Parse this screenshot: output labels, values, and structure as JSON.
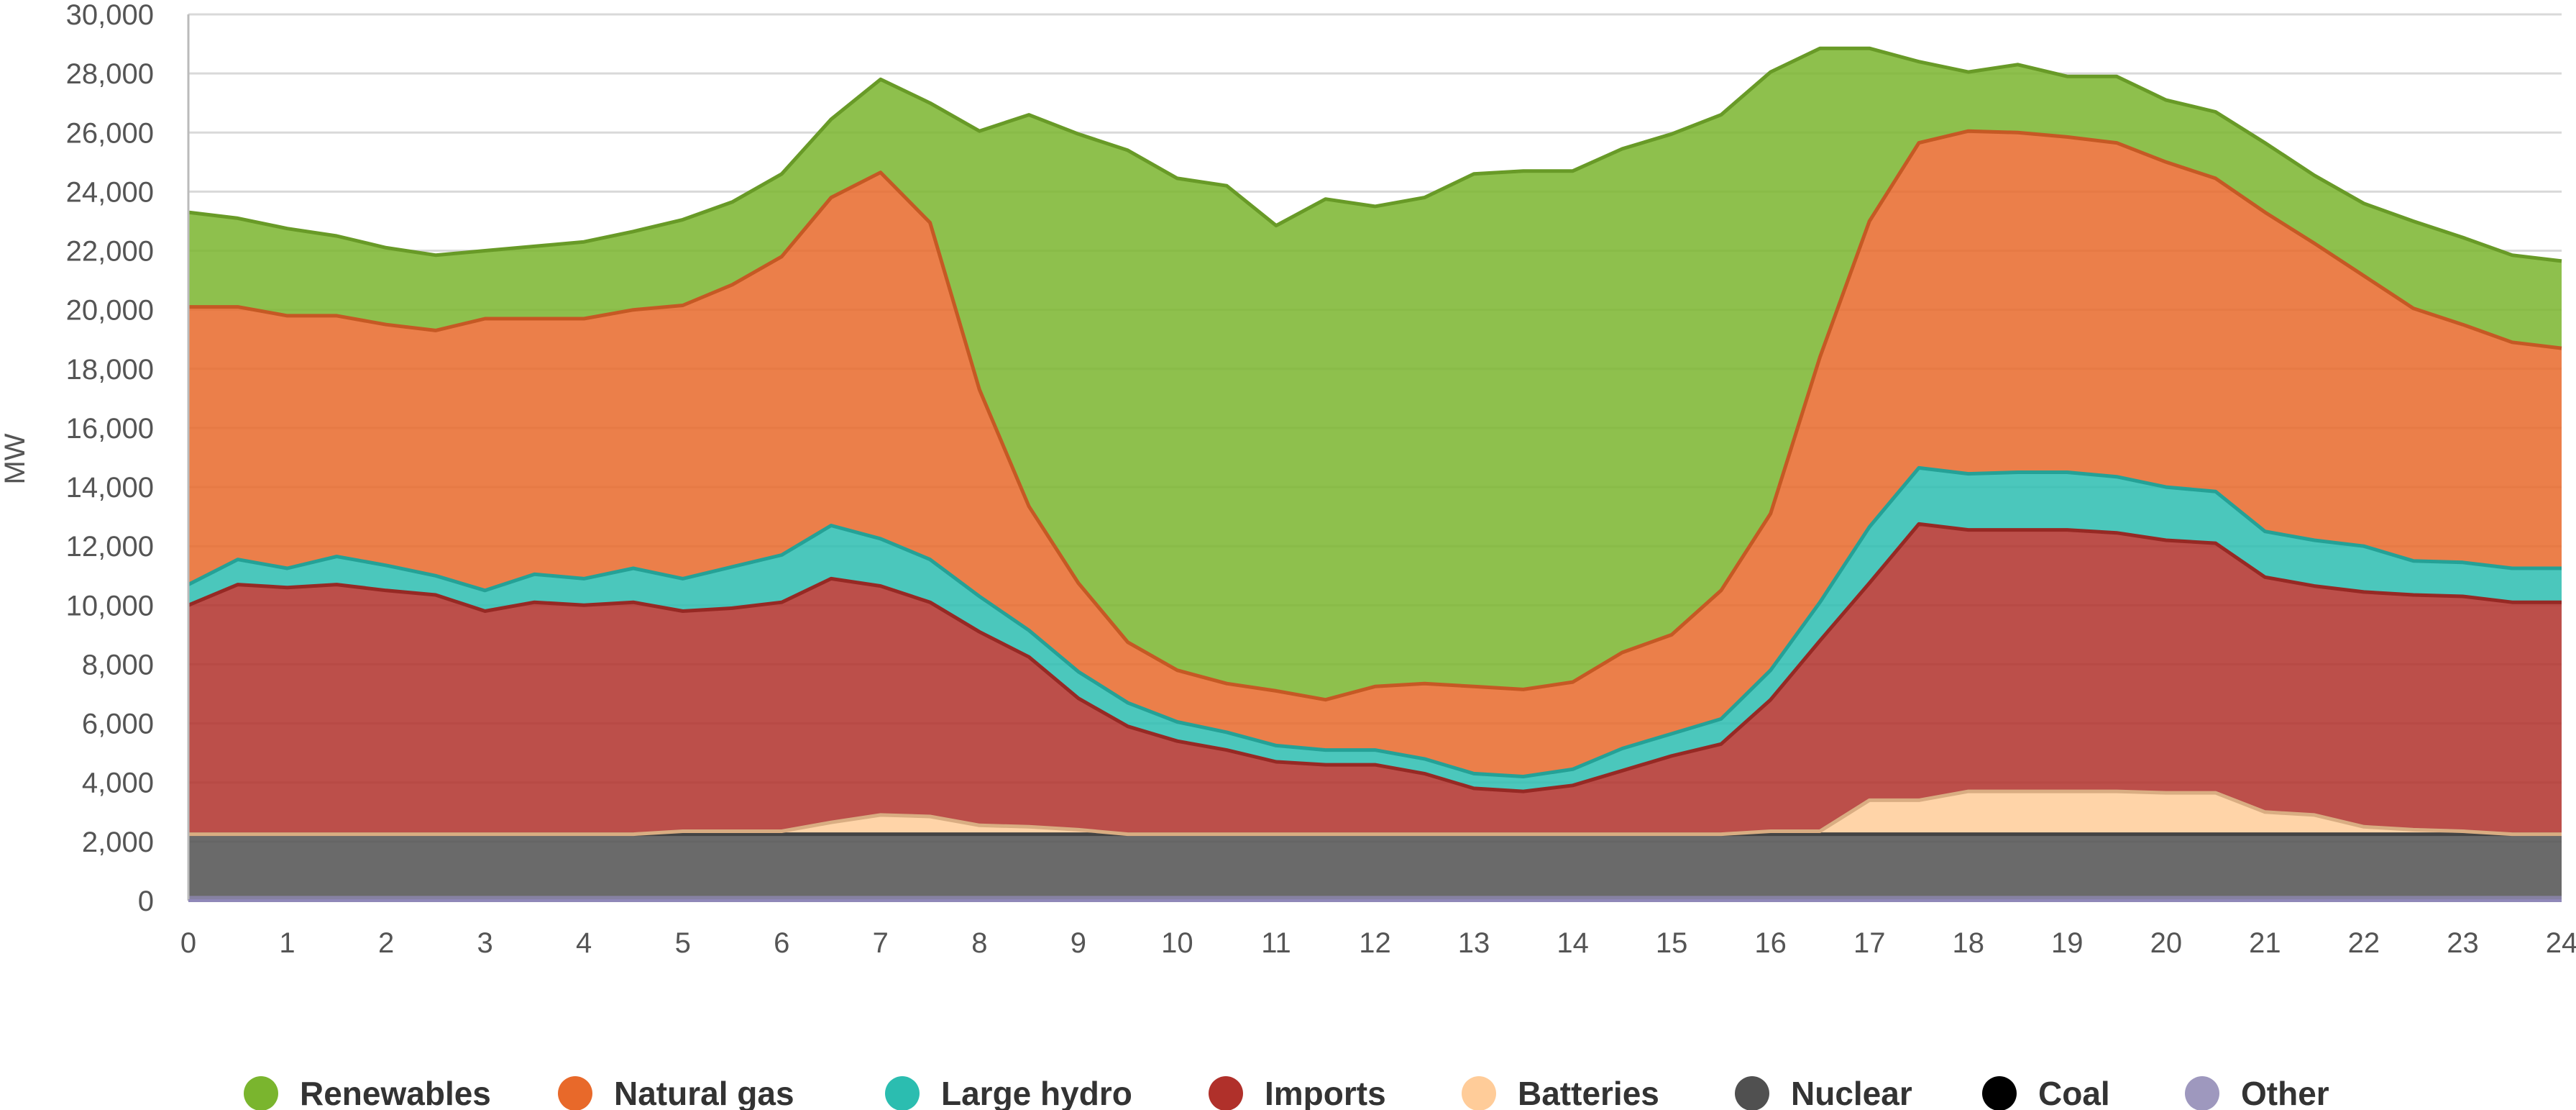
{
  "chart_data": {
    "type": "area",
    "stacked": true,
    "title": "",
    "xlabel": "",
    "ylabel": "MW",
    "xlim": [
      0,
      24
    ],
    "ylim": [
      0,
      30000
    ],
    "x_ticks": [
      "0",
      "1",
      "2",
      "3",
      "4",
      "5",
      "6",
      "7",
      "8",
      "9",
      "10",
      "11",
      "12",
      "13",
      "14",
      "15",
      "16",
      "17",
      "18",
      "19",
      "20",
      "21",
      "22",
      "23",
      "24"
    ],
    "y_ticks": [
      "0",
      "2,000",
      "4,000",
      "6,000",
      "8,000",
      "10,000",
      "12,000",
      "14,000",
      "16,000",
      "18,000",
      "20,000",
      "22,000",
      "24,000",
      "26,000",
      "28,000",
      "30,000"
    ],
    "grid": "horizontal",
    "legend_position": "bottom",
    "x": [
      0,
      0.5,
      1,
      1.5,
      2,
      2.5,
      3,
      3.5,
      4,
      4.5,
      5,
      5.5,
      6,
      6.5,
      7,
      7.5,
      8,
      8.5,
      9,
      9.5,
      10,
      10.5,
      11,
      11.5,
      12,
      12.5,
      13,
      13.5,
      14,
      14.5,
      15,
      15.5,
      16,
      16.5,
      17,
      17.5,
      18,
      18.5,
      19,
      19.5,
      20,
      20.5,
      21,
      21.5,
      22,
      22.5,
      23,
      23.5,
      24
    ],
    "series": [
      {
        "name": "Other",
        "color": "#9E98BE",
        "values": [
          100,
          100,
          100,
          100,
          100,
          100,
          100,
          100,
          100,
          100,
          100,
          100,
          100,
          100,
          100,
          100,
          100,
          100,
          100,
          100,
          100,
          100,
          100,
          100,
          100,
          100,
          100,
          100,
          100,
          100,
          100,
          100,
          100,
          100,
          100,
          100,
          100,
          100,
          100,
          100,
          100,
          100,
          100,
          100,
          100,
          100,
          100,
          100,
          100
        ]
      },
      {
        "name": "Coal",
        "color": "#000000",
        "values": [
          0,
          0,
          0,
          0,
          0,
          0,
          0,
          0,
          0,
          0,
          0,
          0,
          0,
          0,
          0,
          0,
          0,
          0,
          0,
          0,
          0,
          0,
          0,
          0,
          0,
          0,
          0,
          0,
          0,
          0,
          0,
          0,
          0,
          0,
          0,
          0,
          0,
          0,
          0,
          0,
          0,
          0,
          0,
          0,
          0,
          0,
          0,
          0,
          0
        ]
      },
      {
        "name": "Nuclear",
        "color": "#505050",
        "values": [
          2150,
          2150,
          2150,
          2150,
          2150,
          2150,
          2150,
          2150,
          2150,
          2150,
          2150,
          2150,
          2150,
          2150,
          2150,
          2150,
          2150,
          2150,
          2150,
          2150,
          2150,
          2150,
          2150,
          2150,
          2150,
          2150,
          2150,
          2150,
          2150,
          2150,
          2150,
          2150,
          2150,
          2150,
          2150,
          2150,
          2150,
          2150,
          2150,
          2150,
          2150,
          2150,
          2150,
          2150,
          2150,
          2150,
          2150,
          2150,
          2150
        ]
      },
      {
        "name": "Batteries",
        "color": "#FFCC99",
        "values": [
          0,
          0,
          0,
          0,
          0,
          0,
          0,
          0,
          0,
          0,
          100,
          100,
          100,
          400,
          650,
          600,
          300,
          250,
          150,
          0,
          0,
          0,
          0,
          0,
          0,
          0,
          0,
          0,
          0,
          0,
          0,
          0,
          100,
          100,
          1150,
          1150,
          1450,
          1450,
          1450,
          1450,
          1400,
          1400,
          750,
          650,
          250,
          150,
          100,
          0,
          0
        ]
      },
      {
        "name": "Imports",
        "color": "#B0302A",
        "values": [
          7750,
          8450,
          8350,
          8450,
          8250,
          8100,
          7550,
          7850,
          7750,
          7850,
          7450,
          7550,
          7750,
          8250,
          7750,
          7250,
          6550,
          5750,
          4450,
          3650,
          3150,
          2850,
          2450,
          2350,
          2350,
          2050,
          1550,
          1450,
          1650,
          2150,
          2650,
          3050,
          4450,
          6450,
          7350,
          9350,
          8850,
          8850,
          8850,
          8750,
          8550,
          8450,
          7950,
          7750,
          7950,
          7950,
          7950,
          7850,
          7850
        ]
      },
      {
        "name": "Large hydro",
        "color": "#2BBDB0",
        "values": [
          700,
          850,
          650,
          950,
          850,
          650,
          700,
          950,
          900,
          1150,
          1100,
          1400,
          1600,
          1800,
          1600,
          1450,
          1200,
          900,
          900,
          800,
          650,
          600,
          550,
          500,
          500,
          500,
          500,
          500,
          550,
          750,
          750,
          850,
          1000,
          1300,
          1900,
          1900,
          1900,
          1950,
          1950,
          1900,
          1800,
          1750,
          1550,
          1550,
          1550,
          1150,
          1150,
          1150,
          1150
        ]
      },
      {
        "name": "Natural gas",
        "color": "#E8692A",
        "values": [
          9400,
          8550,
          8550,
          8150,
          8150,
          8300,
          9200,
          8650,
          8800,
          8750,
          9250,
          9550,
          10100,
          11100,
          12400,
          11400,
          7000,
          4200,
          3000,
          2050,
          1750,
          1650,
          1850,
          1700,
          2150,
          2550,
          2950,
          2950,
          2950,
          3250,
          3350,
          4350,
          5300,
          8300,
          10350,
          11000,
          11600,
          11500,
          11350,
          11300,
          11000,
          10600,
          10800,
          10050,
          9150,
          8550,
          8050,
          7650,
          7450
        ]
      },
      {
        "name": "Renewables",
        "color": "#7AB52E",
        "values": [
          3200,
          3000,
          2950,
          2700,
          2600,
          2550,
          2300,
          2450,
          2600,
          2650,
          2900,
          2800,
          2800,
          2650,
          3150,
          4050,
          8750,
          13250,
          15200,
          16650,
          16650,
          16850,
          15750,
          16950,
          16250,
          16450,
          17350,
          17550,
          17300,
          17050,
          16950,
          16100,
          14950,
          10450,
          5850,
          2750,
          2000,
          2300,
          2050,
          2250,
          2100,
          2250,
          2350,
          2300,
          2450,
          2950,
          2950,
          2950,
          2950
        ]
      }
    ],
    "legend": [
      {
        "name": "Renewables",
        "color": "#7AB52E"
      },
      {
        "name": "Natural gas",
        "color": "#E8692A"
      },
      {
        "name": "Large hydro",
        "color": "#2BBDB0"
      },
      {
        "name": "Imports",
        "color": "#B0302A"
      },
      {
        "name": "Batteries",
        "color": "#FFCC99"
      },
      {
        "name": "Nuclear",
        "color": "#505050"
      },
      {
        "name": "Coal",
        "color": "#000000"
      },
      {
        "name": "Other",
        "color": "#9E98BE"
      }
    ]
  }
}
